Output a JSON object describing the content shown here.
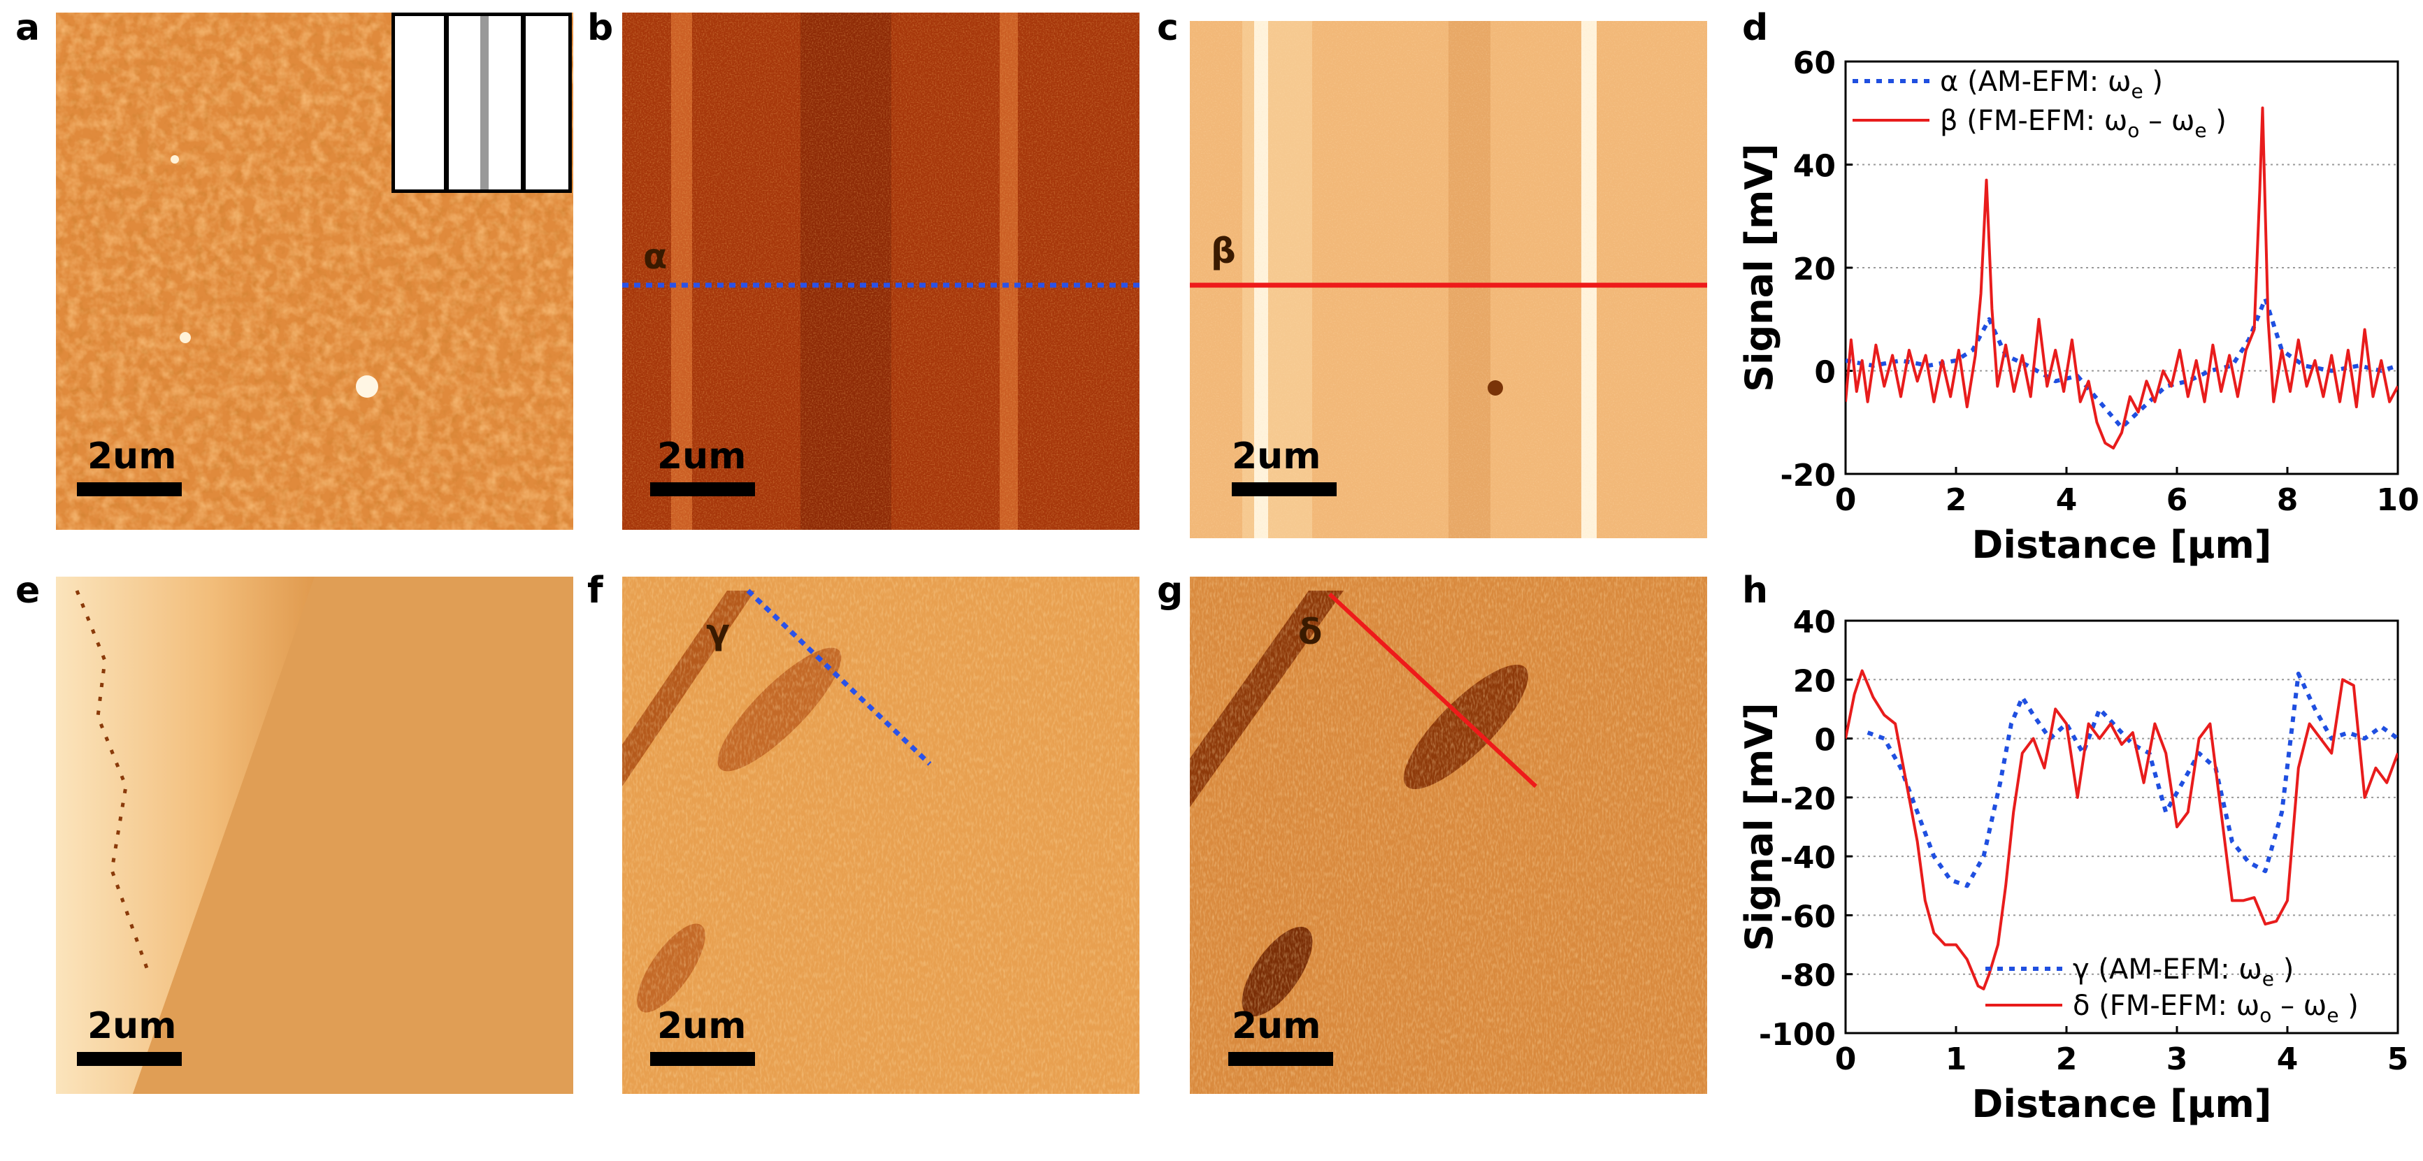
{
  "figure": {
    "panel_letters": [
      "a",
      "b",
      "c",
      "d",
      "e",
      "f",
      "g",
      "h"
    ],
    "scale_bar": "2um",
    "line_labels": [
      "α",
      "β",
      "γ",
      "δ"
    ]
  },
  "chart_data": [
    {
      "type": "line",
      "panel": "d",
      "xlabel": "Distance [μm]",
      "ylabel": "Signal [mV]",
      "xlim": [
        0,
        10
      ],
      "ylim": [
        -20,
        60
      ],
      "xticks": [
        "0",
        "2",
        "4",
        "6",
        "8",
        "10"
      ],
      "yticks": [
        "-20",
        "0",
        "20",
        "40",
        "60"
      ],
      "grid": "horizontal dotted",
      "legend": "top-left",
      "series": [
        {
          "name": "α (AM-EFM: ωe )",
          "legend_text": "α (AM-EFM: ω",
          "legend_sub": "e",
          "legend_tail": " )",
          "style": "dotted",
          "color": "#1f4fe0",
          "x": [
            0,
            0.5,
            1,
            1.5,
            2,
            2.3,
            2.6,
            2.9,
            3.3,
            3.8,
            4.2,
            4.6,
            5.0,
            5.4,
            5.8,
            6.2,
            6.6,
            7.0,
            7.3,
            7.6,
            7.9,
            8.3,
            8.8,
            9.3,
            9.7,
            10
          ],
          "y": [
            2,
            1,
            2,
            1,
            2,
            4,
            10,
            3,
            1,
            -2,
            -1,
            -6,
            -11,
            -7,
            -3,
            -2,
            0,
            1,
            6,
            14,
            4,
            1,
            0,
            1,
            0,
            1
          ]
        },
        {
          "name": "β (FM-EFM: ωo − ωe )",
          "legend_text": "β (FM-EFM: ω",
          "legend_sub": "o",
          "legend_mid": " – ω",
          "legend_sub2": "e",
          "legend_tail": " )",
          "style": "solid",
          "color": "#e81c1c",
          "x": [
            0,
            0.1,
            0.2,
            0.3,
            0.4,
            0.55,
            0.7,
            0.85,
            1.0,
            1.15,
            1.3,
            1.45,
            1.6,
            1.75,
            1.9,
            2.05,
            2.2,
            2.35,
            2.45,
            2.55,
            2.65,
            2.75,
            2.9,
            3.05,
            3.2,
            3.35,
            3.5,
            3.65,
            3.8,
            3.95,
            4.1,
            4.25,
            4.4,
            4.55,
            4.7,
            4.85,
            5.0,
            5.15,
            5.3,
            5.45,
            5.6,
            5.75,
            5.9,
            6.05,
            6.2,
            6.35,
            6.5,
            6.65,
            6.8,
            6.95,
            7.1,
            7.25,
            7.4,
            7.5,
            7.55,
            7.65,
            7.75,
            7.9,
            8.05,
            8.2,
            8.35,
            8.5,
            8.65,
            8.8,
            8.95,
            9.1,
            9.25,
            9.4,
            9.55,
            9.7,
            9.85,
            10
          ],
          "y": [
            -6,
            6,
            -4,
            2,
            -6,
            5,
            -3,
            3,
            -5,
            4,
            -2,
            3,
            -6,
            2,
            -5,
            4,
            -7,
            3,
            15,
            37,
            12,
            -3,
            5,
            -4,
            3,
            -5,
            10,
            -3,
            4,
            -4,
            6,
            -6,
            -2,
            -10,
            -14,
            -15,
            -12,
            -5,
            -8,
            -2,
            -6,
            0,
            -3,
            4,
            -5,
            2,
            -6,
            5,
            -4,
            3,
            -5,
            4,
            8,
            35,
            51,
            10,
            -6,
            4,
            -4,
            6,
            -3,
            2,
            -5,
            3,
            -6,
            4,
            -7,
            8,
            -5,
            2,
            -6,
            -3
          ]
        }
      ]
    },
    {
      "type": "line",
      "panel": "h",
      "xlabel": "Distance [μm]",
      "ylabel": "Signal [mV]",
      "xlim": [
        0,
        5
      ],
      "ylim": [
        -100,
        40
      ],
      "xticks": [
        "0",
        "1",
        "2",
        "3",
        "4",
        "5"
      ],
      "yticks": [
        "-100",
        "-80",
        "-60",
        "-40",
        "-20",
        "0",
        "20",
        "40"
      ],
      "grid": "horizontal dotted",
      "legend": "bottom-right",
      "series": [
        {
          "name": "γ (AM-EFM: ωe )",
          "legend_text": "γ (AM-EFM: ω",
          "legend_sub": "e",
          "legend_tail": " )",
          "style": "dotted",
          "color": "#1f4fe0",
          "x": [
            0.2,
            0.35,
            0.5,
            0.65,
            0.8,
            0.95,
            1.1,
            1.25,
            1.4,
            1.5,
            1.6,
            1.7,
            1.85,
            2.0,
            2.15,
            2.3,
            2.45,
            2.6,
            2.75,
            2.9,
            3.05,
            3.2,
            3.35,
            3.5,
            3.65,
            3.8,
            3.95,
            4.1,
            4.25,
            4.4,
            4.55,
            4.7,
            4.85,
            5.0
          ],
          "y": [
            2,
            0,
            -10,
            -25,
            -40,
            -48,
            -50,
            -40,
            -15,
            5,
            14,
            8,
            0,
            5,
            -5,
            10,
            4,
            -2,
            -5,
            -25,
            -15,
            -5,
            -10,
            -35,
            -42,
            -45,
            -25,
            22,
            10,
            0,
            2,
            0,
            4,
            0
          ]
        },
        {
          "name": "δ (FM-EFM: ωo − ωe )",
          "legend_text": "δ (FM-EFM: ω",
          "legend_sub": "o",
          "legend_mid": " – ω",
          "legend_sub2": "e",
          "legend_tail": " )",
          "style": "solid",
          "color": "#e81c1c",
          "x": [
            0,
            0.08,
            0.15,
            0.25,
            0.35,
            0.45,
            0.55,
            0.65,
            0.72,
            0.8,
            0.9,
            1.0,
            1.1,
            1.2,
            1.25,
            1.3,
            1.38,
            1.45,
            1.52,
            1.6,
            1.7,
            1.8,
            1.9,
            2.0,
            2.1,
            2.2,
            2.3,
            2.4,
            2.5,
            2.6,
            2.7,
            2.8,
            2.9,
            3.0,
            3.1,
            3.2,
            3.3,
            3.4,
            3.5,
            3.6,
            3.7,
            3.8,
            3.9,
            4.0,
            4.1,
            4.2,
            4.3,
            4.4,
            4.5,
            4.6,
            4.7,
            4.8,
            4.9,
            5.0
          ],
          "y": [
            0,
            15,
            23,
            14,
            8,
            5,
            -15,
            -35,
            -55,
            -66,
            -70,
            -70,
            -75,
            -84,
            -85,
            -80,
            -70,
            -50,
            -25,
            -5,
            0,
            -10,
            10,
            5,
            -20,
            5,
            0,
            5,
            -2,
            2,
            -15,
            5,
            -5,
            -30,
            -25,
            0,
            5,
            -25,
            -55,
            -55,
            -54,
            -63,
            -62,
            -55,
            -10,
            5,
            0,
            -5,
            20,
            18,
            -20,
            -10,
            -15,
            -5
          ]
        }
      ]
    }
  ]
}
